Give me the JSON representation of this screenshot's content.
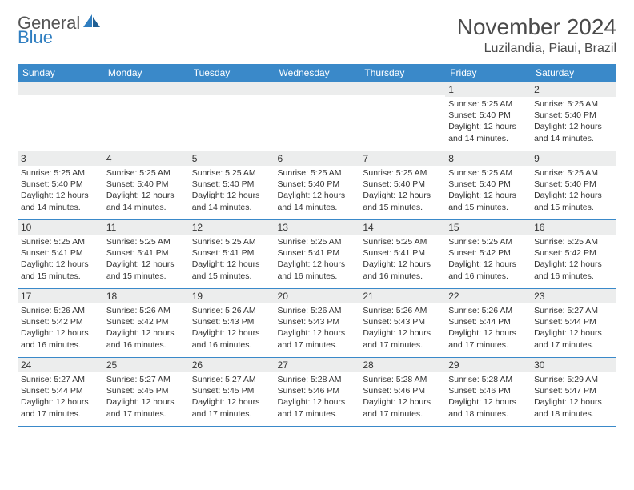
{
  "brand": {
    "text1": "General",
    "text2": "Blue",
    "icon_color": "#2f7ec0"
  },
  "title": "November 2024",
  "location": "Luzilandia, Piaui, Brazil",
  "colors": {
    "header_bg": "#3a89c9",
    "header_text": "#ffffff",
    "band_bg": "#eceded",
    "row_border": "#3a89c9",
    "text": "#333333"
  },
  "day_headers": [
    "Sunday",
    "Monday",
    "Tuesday",
    "Wednesday",
    "Thursday",
    "Friday",
    "Saturday"
  ],
  "weeks": [
    [
      {
        "n": "",
        "sr": "",
        "ss": "",
        "dl": ""
      },
      {
        "n": "",
        "sr": "",
        "ss": "",
        "dl": ""
      },
      {
        "n": "",
        "sr": "",
        "ss": "",
        "dl": ""
      },
      {
        "n": "",
        "sr": "",
        "ss": "",
        "dl": ""
      },
      {
        "n": "",
        "sr": "",
        "ss": "",
        "dl": ""
      },
      {
        "n": "1",
        "sr": "Sunrise: 5:25 AM",
        "ss": "Sunset: 5:40 PM",
        "dl": "Daylight: 12 hours and 14 minutes."
      },
      {
        "n": "2",
        "sr": "Sunrise: 5:25 AM",
        "ss": "Sunset: 5:40 PM",
        "dl": "Daylight: 12 hours and 14 minutes."
      }
    ],
    [
      {
        "n": "3",
        "sr": "Sunrise: 5:25 AM",
        "ss": "Sunset: 5:40 PM",
        "dl": "Daylight: 12 hours and 14 minutes."
      },
      {
        "n": "4",
        "sr": "Sunrise: 5:25 AM",
        "ss": "Sunset: 5:40 PM",
        "dl": "Daylight: 12 hours and 14 minutes."
      },
      {
        "n": "5",
        "sr": "Sunrise: 5:25 AM",
        "ss": "Sunset: 5:40 PM",
        "dl": "Daylight: 12 hours and 14 minutes."
      },
      {
        "n": "6",
        "sr": "Sunrise: 5:25 AM",
        "ss": "Sunset: 5:40 PM",
        "dl": "Daylight: 12 hours and 14 minutes."
      },
      {
        "n": "7",
        "sr": "Sunrise: 5:25 AM",
        "ss": "Sunset: 5:40 PM",
        "dl": "Daylight: 12 hours and 15 minutes."
      },
      {
        "n": "8",
        "sr": "Sunrise: 5:25 AM",
        "ss": "Sunset: 5:40 PM",
        "dl": "Daylight: 12 hours and 15 minutes."
      },
      {
        "n": "9",
        "sr": "Sunrise: 5:25 AM",
        "ss": "Sunset: 5:40 PM",
        "dl": "Daylight: 12 hours and 15 minutes."
      }
    ],
    [
      {
        "n": "10",
        "sr": "Sunrise: 5:25 AM",
        "ss": "Sunset: 5:41 PM",
        "dl": "Daylight: 12 hours and 15 minutes."
      },
      {
        "n": "11",
        "sr": "Sunrise: 5:25 AM",
        "ss": "Sunset: 5:41 PM",
        "dl": "Daylight: 12 hours and 15 minutes."
      },
      {
        "n": "12",
        "sr": "Sunrise: 5:25 AM",
        "ss": "Sunset: 5:41 PM",
        "dl": "Daylight: 12 hours and 15 minutes."
      },
      {
        "n": "13",
        "sr": "Sunrise: 5:25 AM",
        "ss": "Sunset: 5:41 PM",
        "dl": "Daylight: 12 hours and 16 minutes."
      },
      {
        "n": "14",
        "sr": "Sunrise: 5:25 AM",
        "ss": "Sunset: 5:41 PM",
        "dl": "Daylight: 12 hours and 16 minutes."
      },
      {
        "n": "15",
        "sr": "Sunrise: 5:25 AM",
        "ss": "Sunset: 5:42 PM",
        "dl": "Daylight: 12 hours and 16 minutes."
      },
      {
        "n": "16",
        "sr": "Sunrise: 5:25 AM",
        "ss": "Sunset: 5:42 PM",
        "dl": "Daylight: 12 hours and 16 minutes."
      }
    ],
    [
      {
        "n": "17",
        "sr": "Sunrise: 5:26 AM",
        "ss": "Sunset: 5:42 PM",
        "dl": "Daylight: 12 hours and 16 minutes."
      },
      {
        "n": "18",
        "sr": "Sunrise: 5:26 AM",
        "ss": "Sunset: 5:42 PM",
        "dl": "Daylight: 12 hours and 16 minutes."
      },
      {
        "n": "19",
        "sr": "Sunrise: 5:26 AM",
        "ss": "Sunset: 5:43 PM",
        "dl": "Daylight: 12 hours and 16 minutes."
      },
      {
        "n": "20",
        "sr": "Sunrise: 5:26 AM",
        "ss": "Sunset: 5:43 PM",
        "dl": "Daylight: 12 hours and 17 minutes."
      },
      {
        "n": "21",
        "sr": "Sunrise: 5:26 AM",
        "ss": "Sunset: 5:43 PM",
        "dl": "Daylight: 12 hours and 17 minutes."
      },
      {
        "n": "22",
        "sr": "Sunrise: 5:26 AM",
        "ss": "Sunset: 5:44 PM",
        "dl": "Daylight: 12 hours and 17 minutes."
      },
      {
        "n": "23",
        "sr": "Sunrise: 5:27 AM",
        "ss": "Sunset: 5:44 PM",
        "dl": "Daylight: 12 hours and 17 minutes."
      }
    ],
    [
      {
        "n": "24",
        "sr": "Sunrise: 5:27 AM",
        "ss": "Sunset: 5:44 PM",
        "dl": "Daylight: 12 hours and 17 minutes."
      },
      {
        "n": "25",
        "sr": "Sunrise: 5:27 AM",
        "ss": "Sunset: 5:45 PM",
        "dl": "Daylight: 12 hours and 17 minutes."
      },
      {
        "n": "26",
        "sr": "Sunrise: 5:27 AM",
        "ss": "Sunset: 5:45 PM",
        "dl": "Daylight: 12 hours and 17 minutes."
      },
      {
        "n": "27",
        "sr": "Sunrise: 5:28 AM",
        "ss": "Sunset: 5:46 PM",
        "dl": "Daylight: 12 hours and 17 minutes."
      },
      {
        "n": "28",
        "sr": "Sunrise: 5:28 AM",
        "ss": "Sunset: 5:46 PM",
        "dl": "Daylight: 12 hours and 17 minutes."
      },
      {
        "n": "29",
        "sr": "Sunrise: 5:28 AM",
        "ss": "Sunset: 5:46 PM",
        "dl": "Daylight: 12 hours and 18 minutes."
      },
      {
        "n": "30",
        "sr": "Sunrise: 5:29 AM",
        "ss": "Sunset: 5:47 PM",
        "dl": "Daylight: 12 hours and 18 minutes."
      }
    ]
  ]
}
